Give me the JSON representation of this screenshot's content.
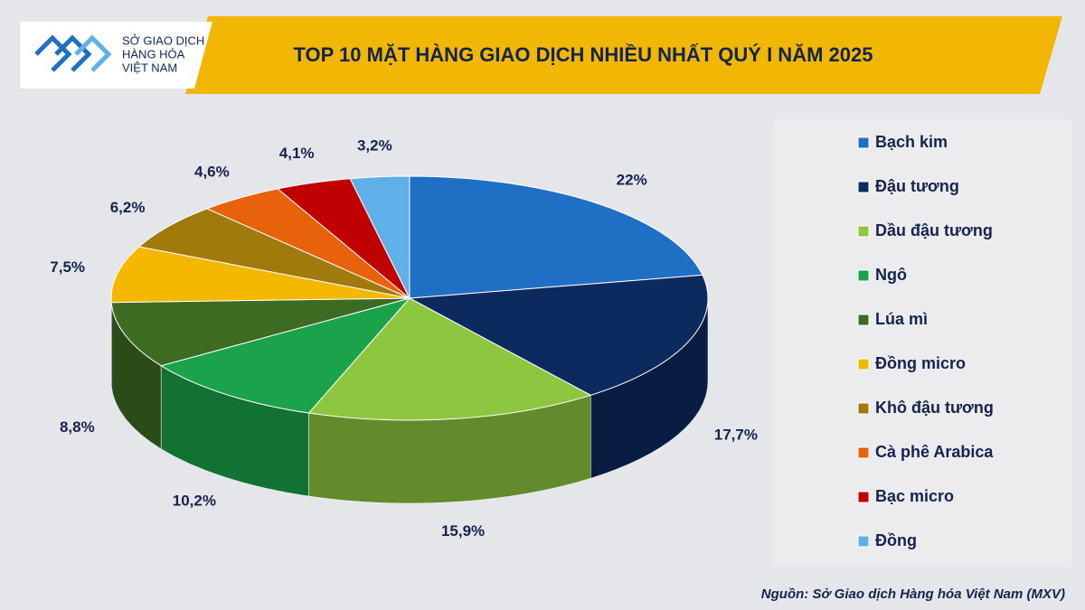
{
  "header": {
    "logo_lines": [
      "SỞ GIAO DỊCH",
      "HÀNG HÓA",
      "VIỆT NAM"
    ]
  },
  "chart_data": {
    "type": "pie",
    "title": "TOP 10 MẶT HÀNG GIAO DỊCH NHIỀU NHẤT QUÝ I NĂM 2025",
    "categories": [
      "Bạch kim",
      "Đậu tương",
      "Dầu đậu tương",
      "Ngô",
      "Lúa mì",
      "Đồng micro",
      "Khô đậu tương",
      "Cà phê Arabica",
      "Bạc micro",
      "Đồng"
    ],
    "values": [
      22,
      17.7,
      15.9,
      10.2,
      8.8,
      7.5,
      6.2,
      4.6,
      4.1,
      3.2
    ],
    "value_labels": [
      "22%",
      "17,7%",
      "15,9%",
      "10,2%",
      "8,8%",
      "7,5%",
      "6,2%",
      "4,6%",
      "4,1%",
      "3,2%"
    ],
    "colors": [
      "#1f6fc5",
      "#0d2a5e",
      "#8dc63f",
      "#1aa34a",
      "#3d6b22",
      "#f5b800",
      "#a07a0a",
      "#e8620c",
      "#c00000",
      "#5fb0e8"
    ],
    "legend": "right",
    "source": "Nguồn: Sở Giao dịch Hàng hóa Việt Nam (MXV)"
  }
}
